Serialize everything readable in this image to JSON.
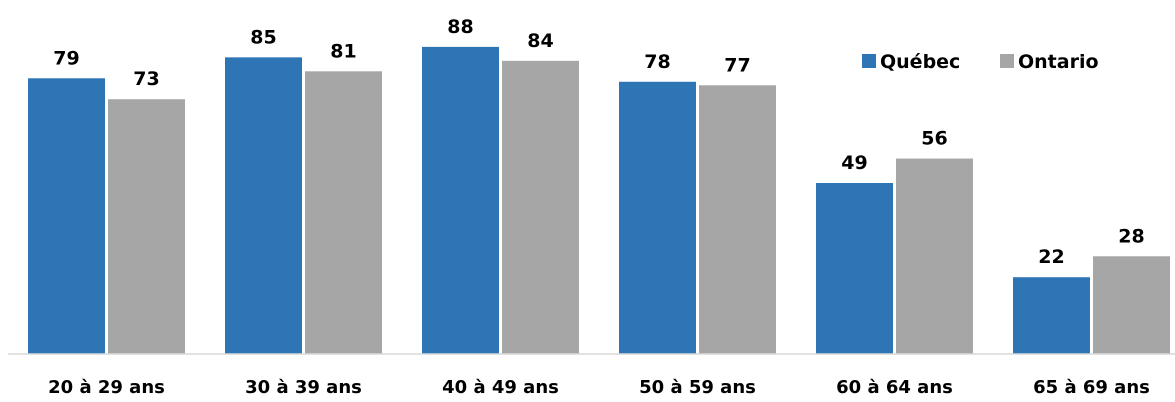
{
  "chart_data": {
    "type": "bar",
    "categories": [
      "20 à 29 ans",
      "30 à 39 ans",
      "40 à 49 ans",
      "50 à 59 ans",
      "60 à 64 ans",
      "65 à 69 ans"
    ],
    "series": [
      {
        "name": "Québec",
        "values": [
          79,
          85,
          88,
          78,
          49,
          22
        ],
        "color": "#2E75B6"
      },
      {
        "name": "Ontario",
        "values": [
          73,
          81,
          84,
          77,
          56,
          28
        ],
        "color": "#A6A6A6"
      }
    ],
    "ylim": [
      0,
      100
    ],
    "grid": false,
    "legend_position": "top-right",
    "data_labels": true,
    "axis_color": "#D9D9D9"
  }
}
